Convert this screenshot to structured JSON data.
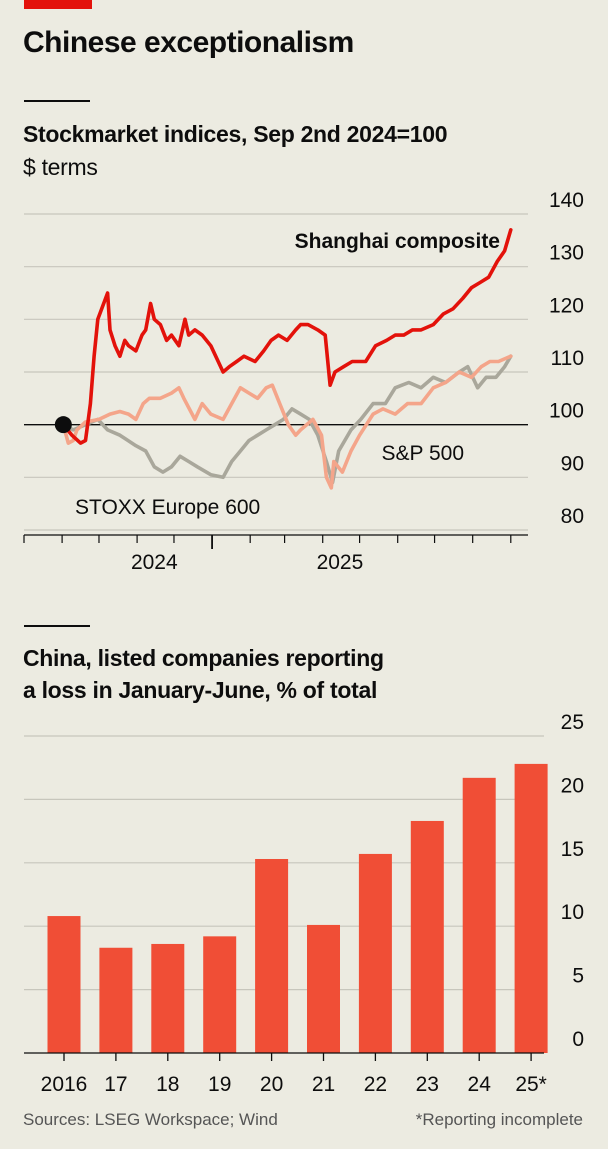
{
  "title": "Chinese exceptionalism",
  "colors": {
    "brand": "#e3120b",
    "shanghai": "#e3120b",
    "sp500": "#f4a58a",
    "stoxx": "#a9a79b",
    "bars": "#f04e36",
    "grid": "#c7c6bc",
    "background": "#ecebe1"
  },
  "footer": {
    "sources": "Sources: LSEG Workspace; Wind",
    "note": "*Reporting incomplete"
  },
  "chart_data": [
    {
      "type": "line",
      "title": "Stockmarket indices, Sep 2nd 2024=100",
      "subtitle": "$ terms",
      "ylim": [
        80,
        140
      ],
      "yticks": [
        80,
        90,
        100,
        110,
        120,
        130,
        140
      ],
      "xlim": [
        "2024-08-01",
        "2025-09-15"
      ],
      "xtick_labels": [
        {
          "label": "2024",
          "date": "2024-11-15"
        },
        {
          "label": "2025",
          "date": "2025-04-15"
        }
      ],
      "year_boundary": "2025-01-01",
      "base_marker": {
        "x": "2024-09-02",
        "y": 100
      },
      "grid": true,
      "series": [
        {
          "name": "Shanghai composite",
          "color": "#e3120b",
          "points": [
            [
              "2024-09-02",
              100
            ],
            [
              "2024-09-09",
              98
            ],
            [
              "2024-09-16",
              96.5
            ],
            [
              "2024-09-20",
              97
            ],
            [
              "2024-09-24",
              104
            ],
            [
              "2024-09-27",
              113
            ],
            [
              "2024-09-30",
              120
            ],
            [
              "2024-10-08",
              125
            ],
            [
              "2024-10-10",
              118
            ],
            [
              "2024-10-14",
              115
            ],
            [
              "2024-10-18",
              113
            ],
            [
              "2024-10-22",
              116
            ],
            [
              "2024-10-25",
              115
            ],
            [
              "2024-10-31",
              114
            ],
            [
              "2024-11-05",
              117
            ],
            [
              "2024-11-08",
              118
            ],
            [
              "2024-11-12",
              123
            ],
            [
              "2024-11-15",
              120
            ],
            [
              "2024-11-20",
              119
            ],
            [
              "2024-11-25",
              116
            ],
            [
              "2024-11-29",
              117
            ],
            [
              "2024-12-05",
              115
            ],
            [
              "2024-12-10",
              120
            ],
            [
              "2024-12-13",
              117
            ],
            [
              "2024-12-18",
              118
            ],
            [
              "2024-12-24",
              117
            ],
            [
              "2024-12-31",
              115
            ],
            [
              "2025-01-06",
              112
            ],
            [
              "2025-01-10",
              110
            ],
            [
              "2025-01-15",
              111
            ],
            [
              "2025-01-21",
              112
            ],
            [
              "2025-01-27",
              113
            ],
            [
              "2025-02-05",
              112
            ],
            [
              "2025-02-12",
              114
            ],
            [
              "2025-02-18",
              116
            ],
            [
              "2025-02-24",
              117
            ],
            [
              "2025-03-03",
              116
            ],
            [
              "2025-03-10",
              118
            ],
            [
              "2025-03-14",
              119
            ],
            [
              "2025-03-20",
              119
            ],
            [
              "2025-03-28",
              118
            ],
            [
              "2025-04-03",
              117
            ],
            [
              "2025-04-07",
              107.5
            ],
            [
              "2025-04-11",
              110
            ],
            [
              "2025-04-18",
              111
            ],
            [
              "2025-04-25",
              112
            ],
            [
              "2025-05-06",
              112
            ],
            [
              "2025-05-14",
              115
            ],
            [
              "2025-05-23",
              116
            ],
            [
              "2025-05-30",
              117
            ],
            [
              "2025-06-06",
              117
            ],
            [
              "2025-06-13",
              118
            ],
            [
              "2025-06-20",
              118
            ],
            [
              "2025-06-30",
              119
            ],
            [
              "2025-07-08",
              121
            ],
            [
              "2025-07-16",
              122
            ],
            [
              "2025-07-24",
              124
            ],
            [
              "2025-07-31",
              126
            ],
            [
              "2025-08-07",
              127
            ],
            [
              "2025-08-14",
              128
            ],
            [
              "2025-08-21",
              131
            ],
            [
              "2025-08-27",
              133
            ],
            [
              "2025-09-01",
              137
            ]
          ]
        },
        {
          "name": "S&P 500",
          "color": "#f4a58a",
          "points": [
            [
              "2024-09-02",
              100
            ],
            [
              "2024-09-06",
              96.5
            ],
            [
              "2024-09-10",
              97
            ],
            [
              "2024-09-13",
              99
            ],
            [
              "2024-09-20",
              100.5
            ],
            [
              "2024-10-01",
              101
            ],
            [
              "2024-10-10",
              102
            ],
            [
              "2024-10-18",
              102.5
            ],
            [
              "2024-10-25",
              102
            ],
            [
              "2024-10-31",
              101
            ],
            [
              "2024-11-06",
              104
            ],
            [
              "2024-11-11",
              105
            ],
            [
              "2024-11-20",
              105
            ],
            [
              "2024-11-29",
              106
            ],
            [
              "2024-12-05",
              107
            ],
            [
              "2024-12-09",
              105
            ],
            [
              "2024-12-18",
              101
            ],
            [
              "2024-12-24",
              104
            ],
            [
              "2024-12-31",
              102
            ],
            [
              "2025-01-10",
              101
            ],
            [
              "2025-01-17",
              104
            ],
            [
              "2025-01-24",
              107
            ],
            [
              "2025-01-31",
              106
            ],
            [
              "2025-02-07",
              105
            ],
            [
              "2025-02-14",
              107
            ],
            [
              "2025-02-19",
              107.5
            ],
            [
              "2025-02-25",
              104
            ],
            [
              "2025-03-04",
              100
            ],
            [
              "2025-03-10",
              98
            ],
            [
              "2025-03-14",
              99
            ],
            [
              "2025-03-24",
              101
            ],
            [
              "2025-03-31",
              98
            ],
            [
              "2025-04-04",
              90
            ],
            [
              "2025-04-08",
              88
            ],
            [
              "2025-04-10",
              93
            ],
            [
              "2025-04-17",
              91
            ],
            [
              "2025-04-24",
              95
            ],
            [
              "2025-05-01",
              98
            ],
            [
              "2025-05-12",
              102
            ],
            [
              "2025-05-20",
              103
            ],
            [
              "2025-05-30",
              102
            ],
            [
              "2025-06-09",
              104
            ],
            [
              "2025-06-20",
              104
            ],
            [
              "2025-06-30",
              107
            ],
            [
              "2025-07-10",
              108
            ],
            [
              "2025-07-21",
              110
            ],
            [
              "2025-07-31",
              109
            ],
            [
              "2025-08-08",
              111
            ],
            [
              "2025-08-15",
              112
            ],
            [
              "2025-08-22",
              112
            ],
            [
              "2025-09-01",
              113
            ]
          ]
        },
        {
          "name": "STOXX Europe 600",
          "color": "#a9a79b",
          "points": [
            [
              "2024-09-02",
              100
            ],
            [
              "2024-09-10",
              99
            ],
            [
              "2024-09-20",
              100
            ],
            [
              "2024-09-30",
              101
            ],
            [
              "2024-10-08",
              99
            ],
            [
              "2024-10-18",
              98
            ],
            [
              "2024-10-31",
              96
            ],
            [
              "2024-11-08",
              95
            ],
            [
              "2024-11-15",
              92
            ],
            [
              "2024-11-22",
              91
            ],
            [
              "2024-11-29",
              92
            ],
            [
              "2024-12-06",
              94
            ],
            [
              "2024-12-13",
              93
            ],
            [
              "2024-12-20",
              92
            ],
            [
              "2024-12-31",
              90.5
            ],
            [
              "2025-01-10",
              90
            ],
            [
              "2025-01-17",
              93
            ],
            [
              "2025-01-24",
              95
            ],
            [
              "2025-01-31",
              97
            ],
            [
              "2025-02-07",
              98
            ],
            [
              "2025-02-14",
              99
            ],
            [
              "2025-02-21",
              100
            ],
            [
              "2025-02-28",
              101
            ],
            [
              "2025-03-07",
              103
            ],
            [
              "2025-03-14",
              102
            ],
            [
              "2025-03-21",
              101
            ],
            [
              "2025-03-28",
              98
            ],
            [
              "2025-04-04",
              93
            ],
            [
              "2025-04-09",
              89
            ],
            [
              "2025-04-14",
              95
            ],
            [
              "2025-04-24",
              99
            ],
            [
              "2025-05-02",
              101
            ],
            [
              "2025-05-12",
              104
            ],
            [
              "2025-05-22",
              104
            ],
            [
              "2025-05-30",
              107
            ],
            [
              "2025-06-10",
              108
            ],
            [
              "2025-06-20",
              107
            ],
            [
              "2025-06-30",
              109
            ],
            [
              "2025-07-10",
              108
            ],
            [
              "2025-07-21",
              110
            ],
            [
              "2025-07-28",
              111
            ],
            [
              "2025-08-05",
              107
            ],
            [
              "2025-08-12",
              109
            ],
            [
              "2025-08-20",
              109
            ],
            [
              "2025-08-27",
              111
            ],
            [
              "2025-09-01",
              113
            ]
          ]
        }
      ]
    },
    {
      "type": "bar",
      "title": "China, listed companies reporting a loss in January-June, % of total",
      "title_lines": [
        "China, listed companies reporting",
        "a loss in January-June, % of total"
      ],
      "categories": [
        "2016",
        "17",
        "18",
        "19",
        "20",
        "21",
        "22",
        "23",
        "24",
        "25*"
      ],
      "values": [
        10.8,
        8.3,
        8.6,
        9.2,
        15.3,
        10.1,
        15.7,
        18.3,
        21.7,
        22.8
      ],
      "ylim": [
        0,
        25
      ],
      "yticks": [
        0,
        5,
        10,
        15,
        20,
        25
      ],
      "grid": true,
      "color": "#f04e36"
    }
  ]
}
